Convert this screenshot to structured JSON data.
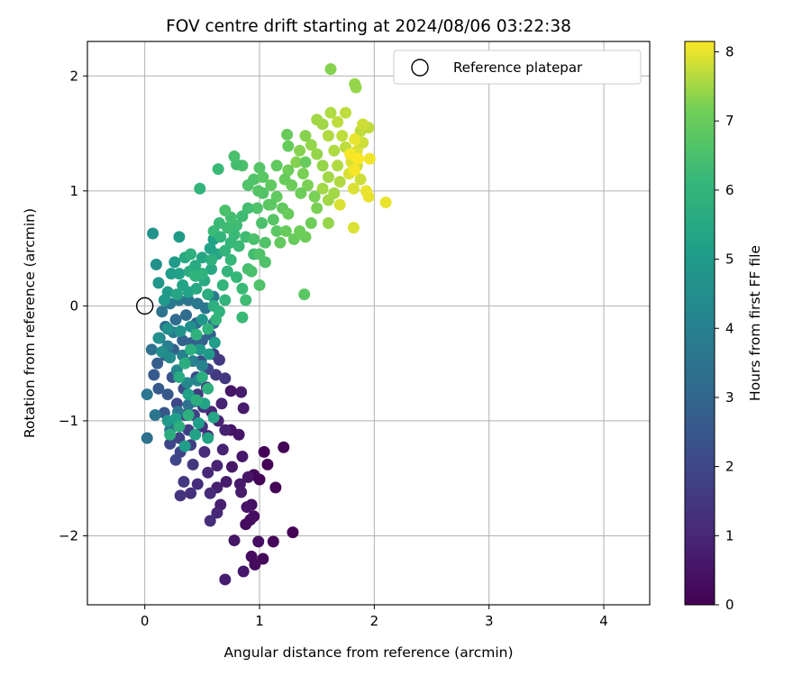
{
  "chart_data": {
    "type": "scatter",
    "title": "FOV centre drift starting at 2024/08/06 03:22:38",
    "xlabel": "Angular distance from reference (arcmin)",
    "ylabel": "Rotation from reference (arcmin)",
    "xlim": [
      -0.5,
      4.4
    ],
    "ylim": [
      -2.6,
      2.3
    ],
    "x_ticks": [
      "0",
      "1",
      "2",
      "3",
      "4"
    ],
    "y_ticks": [
      "−2",
      "−1",
      "0",
      "1",
      "2"
    ],
    "grid": true,
    "legend": {
      "placement": "top-right",
      "entries": [
        "Reference platepar"
      ]
    },
    "reference_point": {
      "x": 0,
      "y": 0
    },
    "colorbar": {
      "label": "Hours from first FF file",
      "colormap": "viridis",
      "range": [
        0,
        8.15
      ],
      "ticks": [
        "0",
        "1",
        "2",
        "3",
        "4",
        "5",
        "6",
        "7",
        "8"
      ]
    },
    "points": [
      [
        1.29,
        -1.97,
        0.05
      ],
      [
        0.93,
        -2.18,
        0.3
      ],
      [
        0.96,
        -2.25,
        0.25
      ],
      [
        1.03,
        -2.2,
        0.2
      ],
      [
        1.12,
        -2.05,
        0.15
      ],
      [
        0.99,
        -2.05,
        0.35
      ],
      [
        0.78,
        -2.04,
        0.55
      ],
      [
        0.86,
        -2.31,
        0.6
      ],
      [
        0.7,
        -2.38,
        0.75
      ],
      [
        1.07,
        -1.38,
        0.1
      ],
      [
        1.04,
        -1.27,
        0.1
      ],
      [
        0.95,
        -1.47,
        0.15
      ],
      [
        1.21,
        -1.23,
        0.05
      ],
      [
        1.14,
        -1.58,
        0.1
      ],
      [
        1.0,
        -1.51,
        0.1
      ],
      [
        0.92,
        -1.86,
        0.3
      ],
      [
        0.93,
        -1.73,
        0.4
      ],
      [
        0.95,
        -1.83,
        0.3
      ],
      [
        0.88,
        -1.9,
        0.25
      ],
      [
        0.89,
        -1.75,
        0.5
      ],
      [
        0.71,
        -1.53,
        0.7
      ],
      [
        0.63,
        -1.58,
        0.8
      ],
      [
        0.66,
        -1.73,
        0.8
      ],
      [
        0.84,
        -1.62,
        0.7
      ],
      [
        0.83,
        -1.55,
        0.65
      ],
      [
        0.76,
        -1.4,
        0.6
      ],
      [
        0.85,
        -1.31,
        0.6
      ],
      [
        0.9,
        -1.49,
        0.55
      ],
      [
        0.82,
        -1.12,
        0.5
      ],
      [
        0.75,
        -1.08,
        0.45
      ],
      [
        0.86,
        -0.89,
        0.7
      ],
      [
        0.84,
        -0.75,
        0.7
      ],
      [
        0.75,
        -0.74,
        0.55
      ],
      [
        0.63,
        -1.8,
        1.0
      ],
      [
        0.57,
        -1.87,
        1.2
      ],
      [
        0.57,
        -1.63,
        1.1
      ],
      [
        0.55,
        -1.45,
        1.0
      ],
      [
        0.63,
        -1.39,
        0.9
      ],
      [
        0.68,
        -1.25,
        0.9
      ],
      [
        0.7,
        -1.08,
        0.85
      ],
      [
        0.64,
        -1.0,
        0.9
      ],
      [
        0.67,
        -0.85,
        0.9
      ],
      [
        0.58,
        -0.92,
        1.05
      ],
      [
        0.55,
        -1.13,
        1.1
      ],
      [
        0.52,
        -1.27,
        1.15
      ],
      [
        0.46,
        -1.55,
        1.2
      ],
      [
        0.4,
        -1.63,
        1.3
      ],
      [
        0.31,
        -1.65,
        1.4
      ],
      [
        0.34,
        -1.53,
        1.5
      ],
      [
        0.42,
        -1.38,
        1.5
      ],
      [
        0.5,
        -1.05,
        1.3
      ],
      [
        0.51,
        -0.88,
        1.4
      ],
      [
        0.46,
        -0.77,
        1.6
      ],
      [
        0.54,
        -0.71,
        1.5
      ],
      [
        0.62,
        -0.6,
        1.6
      ],
      [
        0.7,
        -0.63,
        1.45
      ],
      [
        0.65,
        -0.47,
        1.6
      ],
      [
        0.6,
        -0.42,
        1.7
      ],
      [
        0.4,
        -1.21,
        1.65
      ],
      [
        0.38,
        -1.08,
        1.7
      ],
      [
        0.3,
        -1.15,
        1.8
      ],
      [
        0.22,
        -1.2,
        1.95
      ],
      [
        0.27,
        -1.34,
        1.95
      ],
      [
        0.31,
        -1.27,
        1.9
      ],
      [
        0.35,
        -0.95,
        1.85
      ],
      [
        0.43,
        -0.95,
        1.8
      ],
      [
        0.28,
        -0.85,
        2.0
      ],
      [
        0.34,
        -0.72,
        2.1
      ],
      [
        0.45,
        -0.62,
        2.1
      ],
      [
        0.55,
        -0.55,
        2.0
      ],
      [
        0.49,
        -0.48,
        2.2
      ],
      [
        0.35,
        -0.5,
        2.3
      ],
      [
        0.24,
        -0.62,
        2.4
      ],
      [
        0.2,
        -0.77,
        2.5
      ],
      [
        0.17,
        -0.93,
        2.5
      ],
      [
        0.12,
        -0.72,
        2.6
      ],
      [
        0.08,
        -0.6,
        2.6
      ],
      [
        0.11,
        -0.5,
        2.7
      ],
      [
        0.18,
        -0.43,
        2.7
      ],
      [
        0.25,
        -0.38,
        2.8
      ],
      [
        0.33,
        -0.3,
        2.9
      ],
      [
        0.41,
        -0.32,
        2.8
      ],
      [
        0.5,
        -0.3,
        2.9
      ],
      [
        0.57,
        -0.25,
        2.8
      ],
      [
        0.6,
        -0.15,
        3.0
      ],
      [
        0.45,
        -0.15,
        3.1
      ],
      [
        0.36,
        -0.08,
        3.2
      ],
      [
        0.27,
        -0.12,
        3.2
      ],
      [
        0.18,
        -0.18,
        3.3
      ],
      [
        0.13,
        -0.28,
        3.3
      ],
      [
        0.06,
        -0.38,
        3.4
      ],
      [
        0.02,
        -0.77,
        3.6
      ],
      [
        0.09,
        -0.95,
        3.6
      ],
      [
        0.02,
        -1.15,
        3.4
      ],
      [
        0.22,
        -1.08,
        3.6
      ],
      [
        0.28,
        -1.03,
        3.5
      ],
      [
        0.29,
        -0.92,
        3.6
      ],
      [
        0.38,
        -0.86,
        3.4
      ],
      [
        0.44,
        -0.83,
        3.5
      ],
      [
        0.15,
        -0.05,
        3.5
      ],
      [
        0.22,
        0.02,
        3.6
      ],
      [
        0.3,
        0.05,
        3.7
      ],
      [
        0.38,
        0.05,
        3.6
      ],
      [
        0.46,
        0.02,
        3.7
      ],
      [
        0.53,
        -0.02,
        3.6
      ],
      [
        0.6,
        0.08,
        3.8
      ],
      [
        0.25,
        -0.23,
        3.8
      ],
      [
        0.2,
        -0.35,
        3.9
      ],
      [
        0.33,
        -0.43,
        4.0
      ],
      [
        0.42,
        -0.48,
        4.0
      ],
      [
        0.5,
        -0.52,
        4.1
      ],
      [
        0.46,
        -0.65,
        4.2
      ],
      [
        0.37,
        -0.67,
        4.3
      ],
      [
        0.28,
        -0.56,
        4.3
      ],
      [
        0.22,
        -0.45,
        4.4
      ],
      [
        0.15,
        -0.4,
        4.5
      ],
      [
        0.12,
        -0.28,
        4.6
      ],
      [
        0.2,
        -0.2,
        4.6
      ],
      [
        0.31,
        -0.22,
        4.7
      ],
      [
        0.4,
        -0.18,
        4.6
      ],
      [
        0.5,
        -0.12,
        4.8
      ],
      [
        0.48,
        -0.38,
        4.9
      ],
      [
        0.56,
        -0.42,
        5.0
      ],
      [
        0.61,
        -0.32,
        5.1
      ],
      [
        0.2,
        -1.0,
        5.0
      ],
      [
        0.27,
        -0.98,
        5.1
      ],
      [
        0.38,
        -0.77,
        5.2
      ],
      [
        0.47,
        -1.02,
        5.1
      ],
      [
        0.55,
        -1.15,
        5.3
      ],
      [
        0.35,
        -1.22,
        5.1
      ],
      [
        0.44,
        -1.12,
        5.3
      ],
      [
        0.6,
        -0.97,
        5.4
      ],
      [
        0.52,
        -0.85,
        5.3
      ],
      [
        0.07,
        0.63,
        4.7
      ],
      [
        0.1,
        0.36,
        4.6
      ],
      [
        0.12,
        0.2,
        4.8
      ],
      [
        0.17,
        0.05,
        4.9
      ],
      [
        0.2,
        0.12,
        5.0
      ],
      [
        0.23,
        0.28,
        5.1
      ],
      [
        0.26,
        0.38,
        5.0
      ],
      [
        0.3,
        0.28,
        5.2
      ],
      [
        0.33,
        0.18,
        5.3
      ],
      [
        0.28,
        0.1,
        5.4
      ],
      [
        0.38,
        0.12,
        5.3
      ],
      [
        0.45,
        0.15,
        5.5
      ],
      [
        0.52,
        0.22,
        5.6
      ],
      [
        0.58,
        0.32,
        5.5
      ],
      [
        0.63,
        0.45,
        5.4
      ],
      [
        0.6,
        0.58,
        5.2
      ],
      [
        0.57,
        0.5,
        5.3
      ],
      [
        0.5,
        0.42,
        5.4
      ],
      [
        0.44,
        0.35,
        5.6
      ],
      [
        0.39,
        0.3,
        5.7
      ],
      [
        0.35,
        0.42,
        5.5
      ],
      [
        0.4,
        0.45,
        5.8
      ],
      [
        0.3,
        0.6,
        5.0
      ],
      [
        0.44,
        0.26,
        5.9
      ],
      [
        0.5,
        0.28,
        5.9
      ],
      [
        0.55,
        0.1,
        5.7
      ],
      [
        0.6,
        0.0,
        5.8
      ],
      [
        0.65,
        -0.05,
        5.9
      ],
      [
        0.7,
        0.05,
        6.0
      ],
      [
        0.68,
        0.18,
        6.0
      ],
      [
        0.72,
        0.3,
        6.0
      ],
      [
        0.75,
        0.4,
        6.1
      ],
      [
        0.8,
        0.25,
        6.1
      ],
      [
        0.85,
        0.15,
        6.2
      ],
      [
        0.62,
        -0.12,
        6.0
      ],
      [
        0.55,
        -0.2,
        5.95
      ],
      [
        0.45,
        -0.25,
        5.9
      ],
      [
        0.4,
        -0.38,
        5.8
      ],
      [
        0.35,
        -0.5,
        5.7
      ],
      [
        0.3,
        -0.62,
        5.6
      ],
      [
        0.5,
        -0.62,
        5.7
      ],
      [
        0.55,
        -0.72,
        5.8
      ],
      [
        0.45,
        -0.82,
        5.75
      ],
      [
        0.38,
        -0.95,
        5.8
      ],
      [
        0.3,
        -1.05,
        5.8
      ],
      [
        0.22,
        -1.12,
        5.7
      ],
      [
        0.85,
        -0.1,
        6.2
      ],
      [
        0.88,
        0.05,
        6.3
      ],
      [
        0.9,
        0.32,
        6.4
      ],
      [
        0.95,
        0.45,
        6.4
      ],
      [
        0.88,
        0.6,
        6.3
      ],
      [
        0.8,
        0.7,
        6.3
      ],
      [
        0.75,
        0.77,
        6.4
      ],
      [
        0.7,
        0.83,
        6.5
      ],
      [
        0.65,
        0.72,
        6.2
      ],
      [
        0.6,
        0.65,
        6.2
      ],
      [
        0.95,
        0.58,
        6.5
      ],
      [
        1.0,
        0.45,
        6.6
      ],
      [
        1.05,
        0.55,
        6.6
      ],
      [
        1.02,
        0.72,
        6.5
      ],
      [
        0.98,
        0.85,
        6.6
      ],
      [
        1.03,
        0.98,
        6.6
      ],
      [
        1.08,
        0.88,
        6.8
      ],
      [
        1.12,
        0.75,
        6.7
      ],
      [
        1.15,
        0.65,
        6.8
      ],
      [
        1.05,
        0.38,
        6.6
      ],
      [
        0.93,
        0.3,
        6.5
      ],
      [
        1.0,
        0.18,
        6.6
      ],
      [
        0.99,
        1.0,
        6.7
      ],
      [
        0.95,
        1.1,
        6.6
      ],
      [
        0.9,
        1.05,
        6.6
      ],
      [
        0.85,
        1.22,
        6.5
      ],
      [
        0.8,
        1.23,
        6.4
      ],
      [
        0.78,
        1.3,
        6.5
      ],
      [
        0.64,
        1.19,
        6.2
      ],
      [
        0.48,
        1.02,
        6.0
      ],
      [
        1.0,
        1.2,
        6.7
      ],
      [
        1.03,
        1.12,
        6.8
      ],
      [
        1.1,
        1.05,
        6.9
      ],
      [
        1.15,
        0.95,
        6.9
      ],
      [
        1.2,
        0.85,
        6.9
      ],
      [
        1.25,
        0.8,
        7.0
      ],
      [
        1.23,
        0.65,
        7.0
      ],
      [
        1.18,
        0.55,
        6.9
      ],
      [
        1.3,
        0.58,
        7.0
      ],
      [
        1.35,
        0.65,
        7.1
      ],
      [
        1.4,
        0.6,
        7.1
      ],
      [
        1.45,
        0.72,
        7.1
      ],
      [
        1.5,
        0.85,
        7.2
      ],
      [
        1.48,
        0.95,
        7.2
      ],
      [
        1.42,
        1.05,
        7.2
      ],
      [
        1.38,
        1.15,
        7.2
      ],
      [
        1.32,
        1.25,
        7.3
      ],
      [
        1.25,
        1.18,
        7.1
      ],
      [
        1.28,
        1.05,
        7.1
      ],
      [
        1.22,
        1.1,
        7.0
      ],
      [
        1.35,
        1.35,
        7.3
      ],
      [
        1.4,
        1.48,
        7.3
      ],
      [
        1.45,
        1.4,
        7.4
      ],
      [
        1.5,
        1.32,
        7.4
      ],
      [
        1.55,
        1.22,
        7.4
      ],
      [
        1.6,
        1.12,
        7.5
      ],
      [
        1.55,
        1.02,
        7.5
      ],
      [
        1.6,
        0.92,
        7.5
      ],
      [
        1.65,
        0.98,
        7.5
      ],
      [
        1.7,
        1.08,
        7.6
      ],
      [
        1.68,
        1.22,
        7.6
      ],
      [
        1.65,
        1.35,
        7.6
      ],
      [
        1.6,
        1.48,
        7.6
      ],
      [
        1.55,
        1.58,
        7.5
      ],
      [
        1.5,
        1.62,
        7.5
      ],
      [
        1.62,
        1.68,
        7.6
      ],
      [
        1.68,
        1.6,
        7.7
      ],
      [
        1.72,
        1.48,
        7.7
      ],
      [
        1.75,
        1.38,
        7.7
      ],
      [
        1.8,
        1.3,
        7.8
      ],
      [
        1.85,
        1.22,
        7.8
      ],
      [
        1.88,
        1.1,
        7.8
      ],
      [
        1.82,
        1.02,
        7.9
      ],
      [
        1.78,
        1.15,
        7.9
      ],
      [
        1.8,
        1.25,
        7.9
      ],
      [
        1.85,
        1.35,
        7.9
      ],
      [
        1.9,
        1.42,
        7.8
      ],
      [
        1.88,
        1.52,
        7.7
      ],
      [
        1.95,
        1.55,
        7.7
      ],
      [
        1.9,
        1.58,
        7.8
      ],
      [
        1.75,
        1.68,
        7.7
      ],
      [
        1.83,
        1.45,
        8.0
      ],
      [
        1.79,
        1.32,
        8.1
      ],
      [
        1.86,
        1.28,
        8.15
      ],
      [
        1.83,
        1.18,
        8.1
      ],
      [
        1.93,
        1.0,
        8.0
      ],
      [
        1.95,
        0.95,
        8.0
      ],
      [
        1.7,
        0.88,
        7.9
      ],
      [
        1.82,
        0.68,
        7.9
      ],
      [
        2.1,
        0.9,
        8.0
      ],
      [
        1.96,
        1.28,
        8.05
      ],
      [
        1.83,
        1.93,
        7.4
      ],
      [
        1.84,
        1.9,
        7.4
      ],
      [
        1.62,
        2.06,
        7.3
      ],
      [
        1.24,
        1.49,
        7.0
      ],
      [
        1.25,
        1.39,
        7.0
      ],
      [
        1.15,
        1.22,
        6.9
      ],
      [
        1.4,
        1.25,
        7.0
      ],
      [
        1.6,
        0.72,
        7.4
      ],
      [
        1.36,
        0.98,
        7.1
      ],
      [
        1.1,
        0.88,
        6.8
      ],
      [
        1.39,
        0.1,
        6.8
      ],
      [
        0.9,
        0.85,
        6.4
      ],
      [
        0.85,
        0.78,
        6.3
      ],
      [
        0.78,
        0.62,
        6.2
      ],
      [
        0.75,
        0.55,
        6.1
      ],
      [
        0.7,
        0.48,
        6.0
      ],
      [
        0.82,
        0.52,
        6.2
      ],
      [
        0.72,
        0.68,
        6.3
      ],
      [
        0.66,
        0.6,
        6.0
      ],
      [
        0.58,
        0.4,
        5.8
      ]
    ]
  }
}
